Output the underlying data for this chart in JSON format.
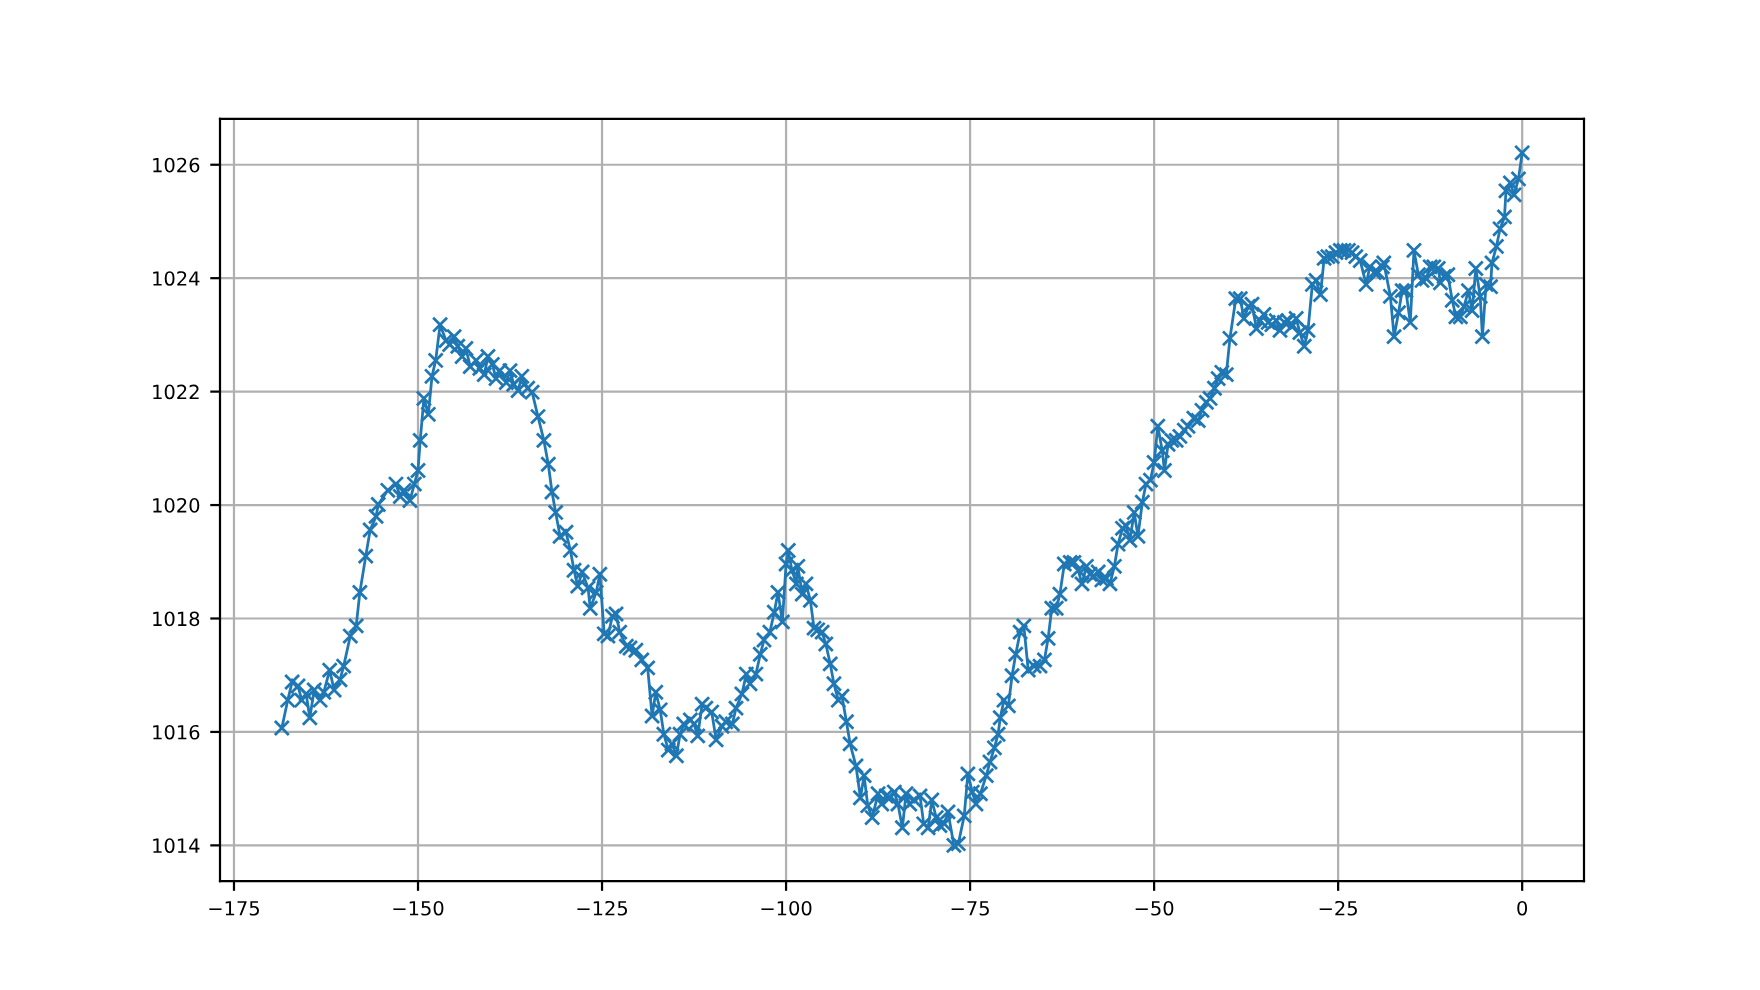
{
  "chart_data": {
    "type": "line",
    "marker": "cross",
    "line_style": "solid",
    "grid": true,
    "xlim": [
      -176.9,
      8.4
    ],
    "ylim": [
      1013.37,
      1026.81
    ],
    "xticks": [
      {
        "value": -175,
        "label": "−175"
      },
      {
        "value": -150,
        "label": "−150"
      },
      {
        "value": -125,
        "label": "−125"
      },
      {
        "value": -100,
        "label": "−100"
      },
      {
        "value": -75,
        "label": "−75"
      },
      {
        "value": -50,
        "label": "−50"
      },
      {
        "value": -25,
        "label": "−25"
      },
      0
    ],
    "yticks": [
      1014,
      1016,
      1018,
      1020,
      1022,
      1024,
      1026
    ],
    "series": [
      {
        "color": "#1f77b4",
        "x": [
          -168.5,
          -167.7,
          -167.1,
          -166.3,
          -165.8,
          -165.2,
          -164.7,
          -164.1,
          -163.3,
          -162.8,
          -162.0,
          -161.4,
          -160.6,
          -160.1,
          -159.2,
          -158.4,
          -157.9,
          -157.1,
          -156.5,
          -155.7,
          -155.4,
          -154.1,
          -153.0,
          -152.4,
          -151.9,
          -151.1,
          -150.5,
          -150.0,
          -149.7,
          -149.2,
          -148.6,
          -148.1,
          -147.6,
          -147.0,
          -146.2,
          -145.7,
          -145.1,
          -144.6,
          -144.0,
          -143.5,
          -142.9,
          -142.1,
          -141.6,
          -141.0,
          -140.5,
          -139.9,
          -139.4,
          -138.9,
          -138.0,
          -137.5,
          -137.0,
          -136.4,
          -135.9,
          -135.1,
          -134.5,
          -133.7,
          -132.9,
          -132.3,
          -131.8,
          -131.3,
          -130.7,
          -129.9,
          -129.3,
          -128.8,
          -128.3,
          -127.7,
          -126.9,
          -126.6,
          -125.8,
          -125.3,
          -124.7,
          -124.2,
          -123.6,
          -123.1,
          -122.6,
          -121.7,
          -121.2,
          -120.4,
          -119.6,
          -118.8,
          -118.2,
          -117.7,
          -117.1,
          -116.6,
          -116.0,
          -115.5,
          -114.9,
          -114.4,
          -113.9,
          -113.0,
          -112.5,
          -112.0,
          -111.4,
          -110.9,
          -110.1,
          -109.5,
          -108.7,
          -108.2,
          -107.3,
          -106.8,
          -106.0,
          -105.4,
          -104.9,
          -104.1,
          -103.5,
          -103.0,
          -102.2,
          -101.6,
          -101.1,
          -100.5,
          -100.0,
          -99.7,
          -99.2,
          -98.6,
          -98.4,
          -97.8,
          -97.3,
          -96.7,
          -96.2,
          -95.7,
          -95.1,
          -94.6,
          -94.0,
          -93.5,
          -92.9,
          -92.4,
          -91.8,
          -91.3,
          -90.5,
          -89.9,
          -89.4,
          -88.9,
          -88.3,
          -87.5,
          -87.0,
          -86.4,
          -85.9,
          -85.3,
          -84.8,
          -84.2,
          -83.7,
          -83.2,
          -82.6,
          -81.8,
          -81.3,
          -80.7,
          -80.2,
          -79.6,
          -79.1,
          -78.5,
          -78.0,
          -77.2,
          -76.6,
          -75.8,
          -75.3,
          -74.7,
          -74.2,
          -73.6,
          -72.8,
          -72.3,
          -71.7,
          -71.2,
          -70.9,
          -70.4,
          -69.8,
          -69.3,
          -68.8,
          -68.2,
          -67.7,
          -67.1,
          -66.3,
          -65.5,
          -64.9,
          -64.4,
          -63.9,
          -63.3,
          -62.8,
          -62.2,
          -61.4,
          -60.9,
          -60.3,
          -59.8,
          -59.2,
          -58.7,
          -58.2,
          -57.6,
          -57.1,
          -56.5,
          -56.0,
          -55.4,
          -54.9,
          -54.3,
          -53.8,
          -53.3,
          -52.7,
          -52.2,
          -51.6,
          -51.1,
          -50.5,
          -50.0,
          -49.5,
          -48.9,
          -48.6,
          -48.1,
          -47.6,
          -47.0,
          -46.5,
          -45.9,
          -45.4,
          -44.6,
          -44.0,
          -43.5,
          -42.9,
          -42.4,
          -41.8,
          -41.3,
          -40.8,
          -40.2,
          -39.7,
          -38.9,
          -38.3,
          -37.8,
          -37.2,
          -36.7,
          -36.1,
          -35.6,
          -35.1,
          -34.5,
          -34.0,
          -33.4,
          -32.9,
          -32.3,
          -31.8,
          -31.3,
          -30.7,
          -30.2,
          -29.6,
          -29.1,
          -28.5,
          -28.0,
          -27.4,
          -26.9,
          -26.4,
          -25.8,
          -25.3,
          -24.7,
          -24.2,
          -23.6,
          -23.1,
          -22.6,
          -22.0,
          -21.2,
          -20.7,
          -20.1,
          -19.6,
          -19.0,
          -18.8,
          -17.9,
          -17.4,
          -16.8,
          -16.3,
          -15.8,
          -15.2,
          -14.7,
          -14.1,
          -13.6,
          -13.0,
          -12.5,
          -12.0,
          -11.4,
          -11.1,
          -10.6,
          -10.1,
          -9.5,
          -9.0,
          -8.4,
          -7.9,
          -7.3,
          -6.8,
          -6.3,
          -5.7,
          -5.4,
          -4.9,
          -4.3,
          -4.1,
          -3.5,
          -3.0,
          -2.4,
          -2.2,
          -1.6,
          -1.1,
          -0.5,
          0
        ],
        "values": [
          1016.07,
          1016.56,
          1016.88,
          1016.81,
          1016.56,
          1016.67,
          1016.25,
          1016.74,
          1016.56,
          1016.7,
          1017.09,
          1016.74,
          1016.92,
          1017.16,
          1017.69,
          1017.87,
          1018.46,
          1019.1,
          1019.56,
          1019.8,
          1020.01,
          1020.26,
          1020.37,
          1020.15,
          1020.26,
          1020.08,
          1020.37,
          1020.61,
          1021.14,
          1021.88,
          1021.6,
          1022.27,
          1022.55,
          1023.18,
          1022.9,
          1022.83,
          1022.97,
          1022.8,
          1022.62,
          1022.76,
          1022.44,
          1022.55,
          1022.41,
          1022.3,
          1022.62,
          1022.48,
          1022.23,
          1022.37,
          1022.16,
          1022.37,
          1022.13,
          1022.02,
          1022.27,
          1022.06,
          1021.99,
          1021.56,
          1021.14,
          1020.72,
          1020.23,
          1019.87,
          1019.45,
          1019.52,
          1019.2,
          1018.85,
          1018.57,
          1018.82,
          1018.54,
          1018.18,
          1018.46,
          1018.78,
          1017.73,
          1017.69,
          1018.04,
          1018.08,
          1017.76,
          1017.51,
          1017.48,
          1017.44,
          1017.27,
          1017.13,
          1016.28,
          1016.7,
          1016.39,
          1015.96,
          1015.68,
          1015.79,
          1015.58,
          1015.96,
          1016.14,
          1016.21,
          1016.14,
          1015.93,
          1016.49,
          1016.42,
          1016.35,
          1015.86,
          1016.1,
          1016.18,
          1016.14,
          1016.42,
          1016.67,
          1017.02,
          1016.85,
          1017.02,
          1017.37,
          1017.62,
          1017.76,
          1018.11,
          1018.46,
          1017.94,
          1018.96,
          1019.2,
          1018.85,
          1018.61,
          1018.92,
          1018.43,
          1018.61,
          1018.32,
          1017.83,
          1017.8,
          1017.76,
          1017.55,
          1017.2,
          1016.85,
          1016.56,
          1016.63,
          1016.18,
          1015.79,
          1015.4,
          1014.84,
          1015.23,
          1014.7,
          1014.49,
          1014.91,
          1014.73,
          1014.87,
          1014.84,
          1014.94,
          1014.73,
          1014.31,
          1014.91,
          1014.73,
          1014.8,
          1014.87,
          1014.38,
          1014.31,
          1014.8,
          1014.49,
          1014.35,
          1014.38,
          1014.59,
          1014.0,
          1014.03,
          1014.52,
          1015.26,
          1014.94,
          1014.73,
          1014.91,
          1015.23,
          1015.47,
          1015.72,
          1015.96,
          1016.25,
          1016.56,
          1016.46,
          1016.99,
          1017.37,
          1017.76,
          1017.87,
          1017.09,
          1017.16,
          1017.16,
          1017.27,
          1017.65,
          1018.18,
          1018.18,
          1018.43,
          1018.96,
          1018.99,
          1018.99,
          1018.85,
          1018.61,
          1018.92,
          1018.78,
          1018.75,
          1018.82,
          1018.68,
          1018.71,
          1018.61,
          1018.92,
          1019.31,
          1019.59,
          1019.63,
          1019.38,
          1019.87,
          1019.45,
          1020.05,
          1020.37,
          1020.44,
          1020.75,
          1021.39,
          1020.96,
          1020.61,
          1021.07,
          1021.14,
          1021.14,
          1021.21,
          1021.32,
          1021.39,
          1021.53,
          1021.49,
          1021.67,
          1021.81,
          1021.88,
          1022.06,
          1022.23,
          1022.34,
          1022.3,
          1022.94,
          1023.64,
          1023.64,
          1023.29,
          1023.5,
          1023.54,
          1023.11,
          1023.25,
          1023.36,
          1023.22,
          1023.18,
          1023.25,
          1023.08,
          1023.22,
          1023.25,
          1023.15,
          1023.29,
          1023.04,
          1022.8,
          1023.08,
          1023.89,
          1023.96,
          1023.71,
          1024.35,
          1024.38,
          1024.38,
          1024.45,
          1024.49,
          1024.49,
          1024.49,
          1024.45,
          1024.38,
          1024.31,
          1023.89,
          1024.2,
          1024.1,
          1024.1,
          1024.2,
          1024.27,
          1023.68,
          1022.97,
          1023.39,
          1023.78,
          1023.78,
          1023.22,
          1024.49,
          1024.06,
          1023.96,
          1023.99,
          1024.2,
          1024.2,
          1024.17,
          1023.92,
          1024.03,
          1024.06,
          1023.61,
          1023.32,
          1023.32,
          1023.5,
          1023.78,
          1023.43,
          1024.17,
          1023.68,
          1022.97,
          1023.89,
          1023.85,
          1024.27,
          1024.56,
          1024.87,
          1025.08,
          1025.54,
          1025.68,
          1025.47,
          1025.75,
          1026.21
        ]
      }
    ]
  }
}
